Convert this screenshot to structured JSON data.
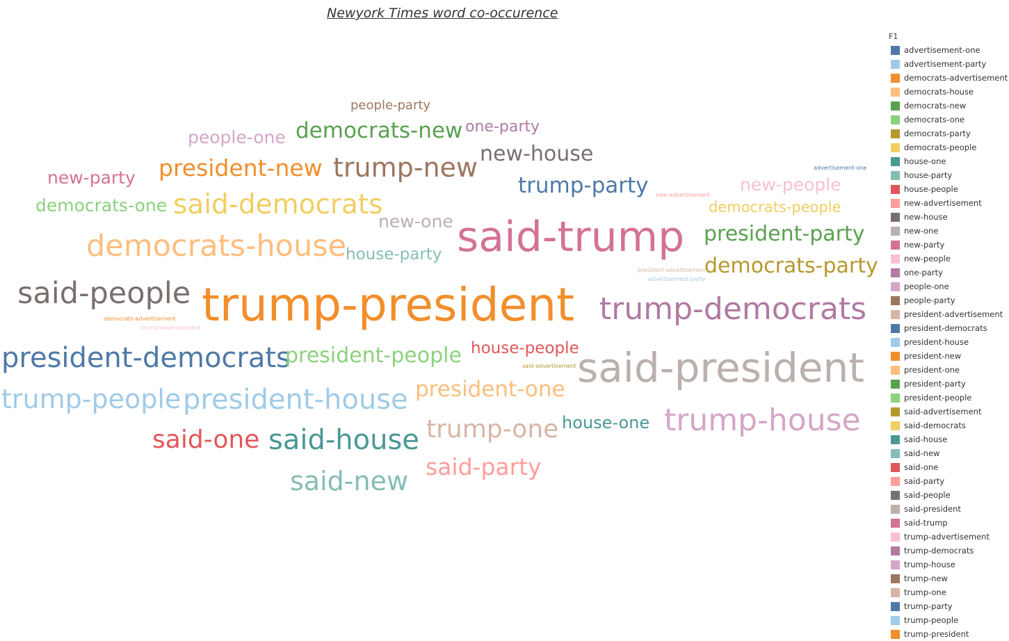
{
  "chart_data": {
    "type": "wordcloud",
    "title": "Newyork Times word co-occurence",
    "legend_title": "F1",
    "legend_position": "right",
    "colors": {
      "advertisement-one": "#4e79a7",
      "advertisement-party": "#a0cbe8",
      "democrats-advertisement": "#f28e2b",
      "democrats-house": "#ffbe7d",
      "democrats-new": "#59a14f",
      "democrats-one": "#8cd17d",
      "democrats-party": "#b6992d",
      "democrats-people": "#f1ce63",
      "house-one": "#499894",
      "house-party": "#86bcb6",
      "house-people": "#e15759",
      "new-advertisement": "#ff9d9a",
      "new-house": "#79706e",
      "new-one": "#bab0ac",
      "new-party": "#d37295",
      "new-people": "#fabfd2",
      "one-party": "#b07aa1",
      "people-one": "#d4a6c8",
      "people-party": "#9d7660",
      "president-advertisement": "#d7b5a6",
      "president-democrats": "#4e79a7",
      "president-house": "#a0cbe8",
      "president-new": "#f28e2b",
      "president-one": "#ffbe7d",
      "president-party": "#59a14f",
      "president-people": "#8cd17d",
      "said-advertisement": "#b6992d",
      "said-democrats": "#f1ce63",
      "said-house": "#499894",
      "said-new": "#86bcb6",
      "said-one": "#e15759",
      "said-party": "#ff9d9a",
      "said-people": "#79706e",
      "said-president": "#bab0ac",
      "said-trump": "#d37295",
      "trump-advertisement": "#fabfd2",
      "trump-democrats": "#b07aa1",
      "trump-house": "#d4a6c8",
      "trump-new": "#9d7660",
      "trump-one": "#d7b5a6",
      "trump-party": "#4e79a7",
      "trump-people": "#a0cbe8",
      "trump-president": "#f28e2b"
    },
    "legend": [
      "advertisement-one",
      "advertisement-party",
      "democrats-advertisement",
      "democrats-house",
      "democrats-new",
      "democrats-one",
      "democrats-party",
      "democrats-people",
      "house-one",
      "house-party",
      "house-people",
      "new-advertisement",
      "new-house",
      "new-one",
      "new-party",
      "new-people",
      "one-party",
      "people-one",
      "people-party",
      "president-advertisement",
      "president-democrats",
      "president-house",
      "president-new",
      "president-one",
      "president-party",
      "president-people",
      "said-advertisement",
      "said-democrats",
      "said-house",
      "said-new",
      "said-one",
      "said-party",
      "said-people",
      "said-president",
      "said-trump",
      "trump-advertisement",
      "trump-democrats",
      "trump-house",
      "trump-new",
      "trump-one",
      "trump-party",
      "trump-people",
      "trump-president"
    ],
    "words": [
      {
        "text": "trump-president",
        "weight": 100
      },
      {
        "text": "said-trump",
        "weight": 82
      },
      {
        "text": "said-president",
        "weight": 80
      },
      {
        "text": "trump-democrats",
        "weight": 62
      },
      {
        "text": "said-people",
        "weight": 60
      },
      {
        "text": "president-democrats",
        "weight": 58
      },
      {
        "text": "trump-house",
        "weight": 58
      },
      {
        "text": "democrats-house",
        "weight": 58
      },
      {
        "text": "said-house",
        "weight": 56
      },
      {
        "text": "president-house",
        "weight": 56
      },
      {
        "text": "said-democrats",
        "weight": 54
      },
      {
        "text": "trump-new",
        "weight": 52
      },
      {
        "text": "trump-people",
        "weight": 52
      },
      {
        "text": "said-new",
        "weight": 52
      },
      {
        "text": "said-one",
        "weight": 50
      },
      {
        "text": "trump-one",
        "weight": 50
      },
      {
        "text": "democrats-party",
        "weight": 46
      },
      {
        "text": "president-party",
        "weight": 46
      },
      {
        "text": "president-new",
        "weight": 46
      },
      {
        "text": "said-party",
        "weight": 46
      },
      {
        "text": "president-one",
        "weight": 46
      },
      {
        "text": "democrats-new",
        "weight": 44
      },
      {
        "text": "president-people",
        "weight": 44
      },
      {
        "text": "trump-party",
        "weight": 44
      },
      {
        "text": "new-house",
        "weight": 44
      },
      {
        "text": "new-one",
        "weight": 40
      },
      {
        "text": "people-one",
        "weight": 40
      },
      {
        "text": "democrats-one",
        "weight": 40
      },
      {
        "text": "new-party",
        "weight": 40
      },
      {
        "text": "new-people",
        "weight": 40
      },
      {
        "text": "house-people",
        "weight": 38
      },
      {
        "text": "house-party",
        "weight": 38
      },
      {
        "text": "house-one",
        "weight": 38
      },
      {
        "text": "one-party",
        "weight": 38
      },
      {
        "text": "democrats-people",
        "weight": 36
      },
      {
        "text": "people-party",
        "weight": 34
      },
      {
        "text": "advertisement-one",
        "weight": 12
      },
      {
        "text": "new-advertisement",
        "weight": 12
      },
      {
        "text": "president-advertisement",
        "weight": 12
      },
      {
        "text": "advertisement-party",
        "weight": 12
      },
      {
        "text": "democrats-advertisement",
        "weight": 12
      },
      {
        "text": "trump-advertisement",
        "weight": 12
      },
      {
        "text": "said-advertisement",
        "weight": 12
      }
    ]
  }
}
